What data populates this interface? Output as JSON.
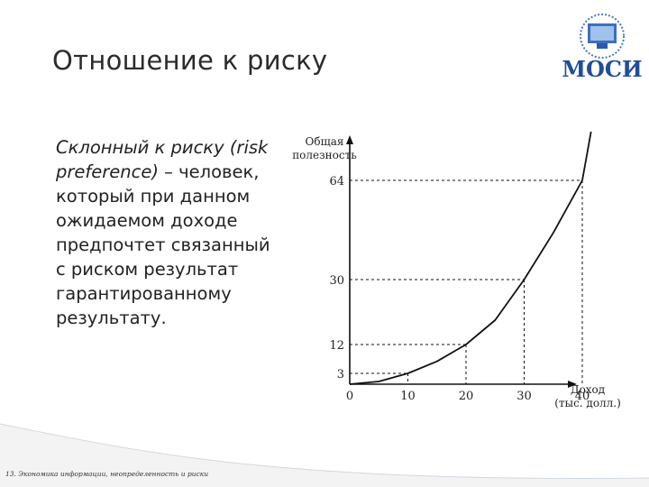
{
  "slide": {
    "title": "Отношение к риску",
    "logo_text": "МОСИ",
    "footer": "13. Экономика информации, неопределенность и риски",
    "body": {
      "term": "Склонный к риску (risk preference)",
      "rest": " – человек, который при данном ожидаемом доходе предпочтет связанный с риском результат гарантированному результату."
    }
  },
  "chart_data": {
    "type": "line",
    "ylabel": "Общая полезность",
    "xlabel": "Доход (тыс. долл.)",
    "x_ticks": [
      "0",
      "10",
      "20",
      "30",
      "40"
    ],
    "y_ticks": [
      "3",
      "12",
      "30",
      "64"
    ],
    "xlim": [
      0,
      48
    ],
    "ylim": [
      0,
      75
    ],
    "series": [
      {
        "values": [
          {
            "x": 0,
            "y": 0
          },
          {
            "x": 5,
            "y": 0.75
          },
          {
            "x": 10,
            "y": 3
          },
          {
            "x": 15,
            "y": 6.75
          },
          {
            "x": 20,
            "y": 12
          },
          {
            "x": 25,
            "y": 18.75
          },
          {
            "x": 30,
            "y": 30
          },
          {
            "x": 35,
            "y": 46
          },
          {
            "x": 40,
            "y": 64
          },
          {
            "x": 41.5,
            "y": 75
          }
        ]
      }
    ],
    "guides": [
      {
        "x": 10,
        "y": 3
      },
      {
        "x": 20,
        "y": 12
      },
      {
        "x": 30,
        "y": 30
      },
      {
        "x": 40,
        "y": 64
      }
    ],
    "grid": false,
    "line_color": "#111111"
  }
}
